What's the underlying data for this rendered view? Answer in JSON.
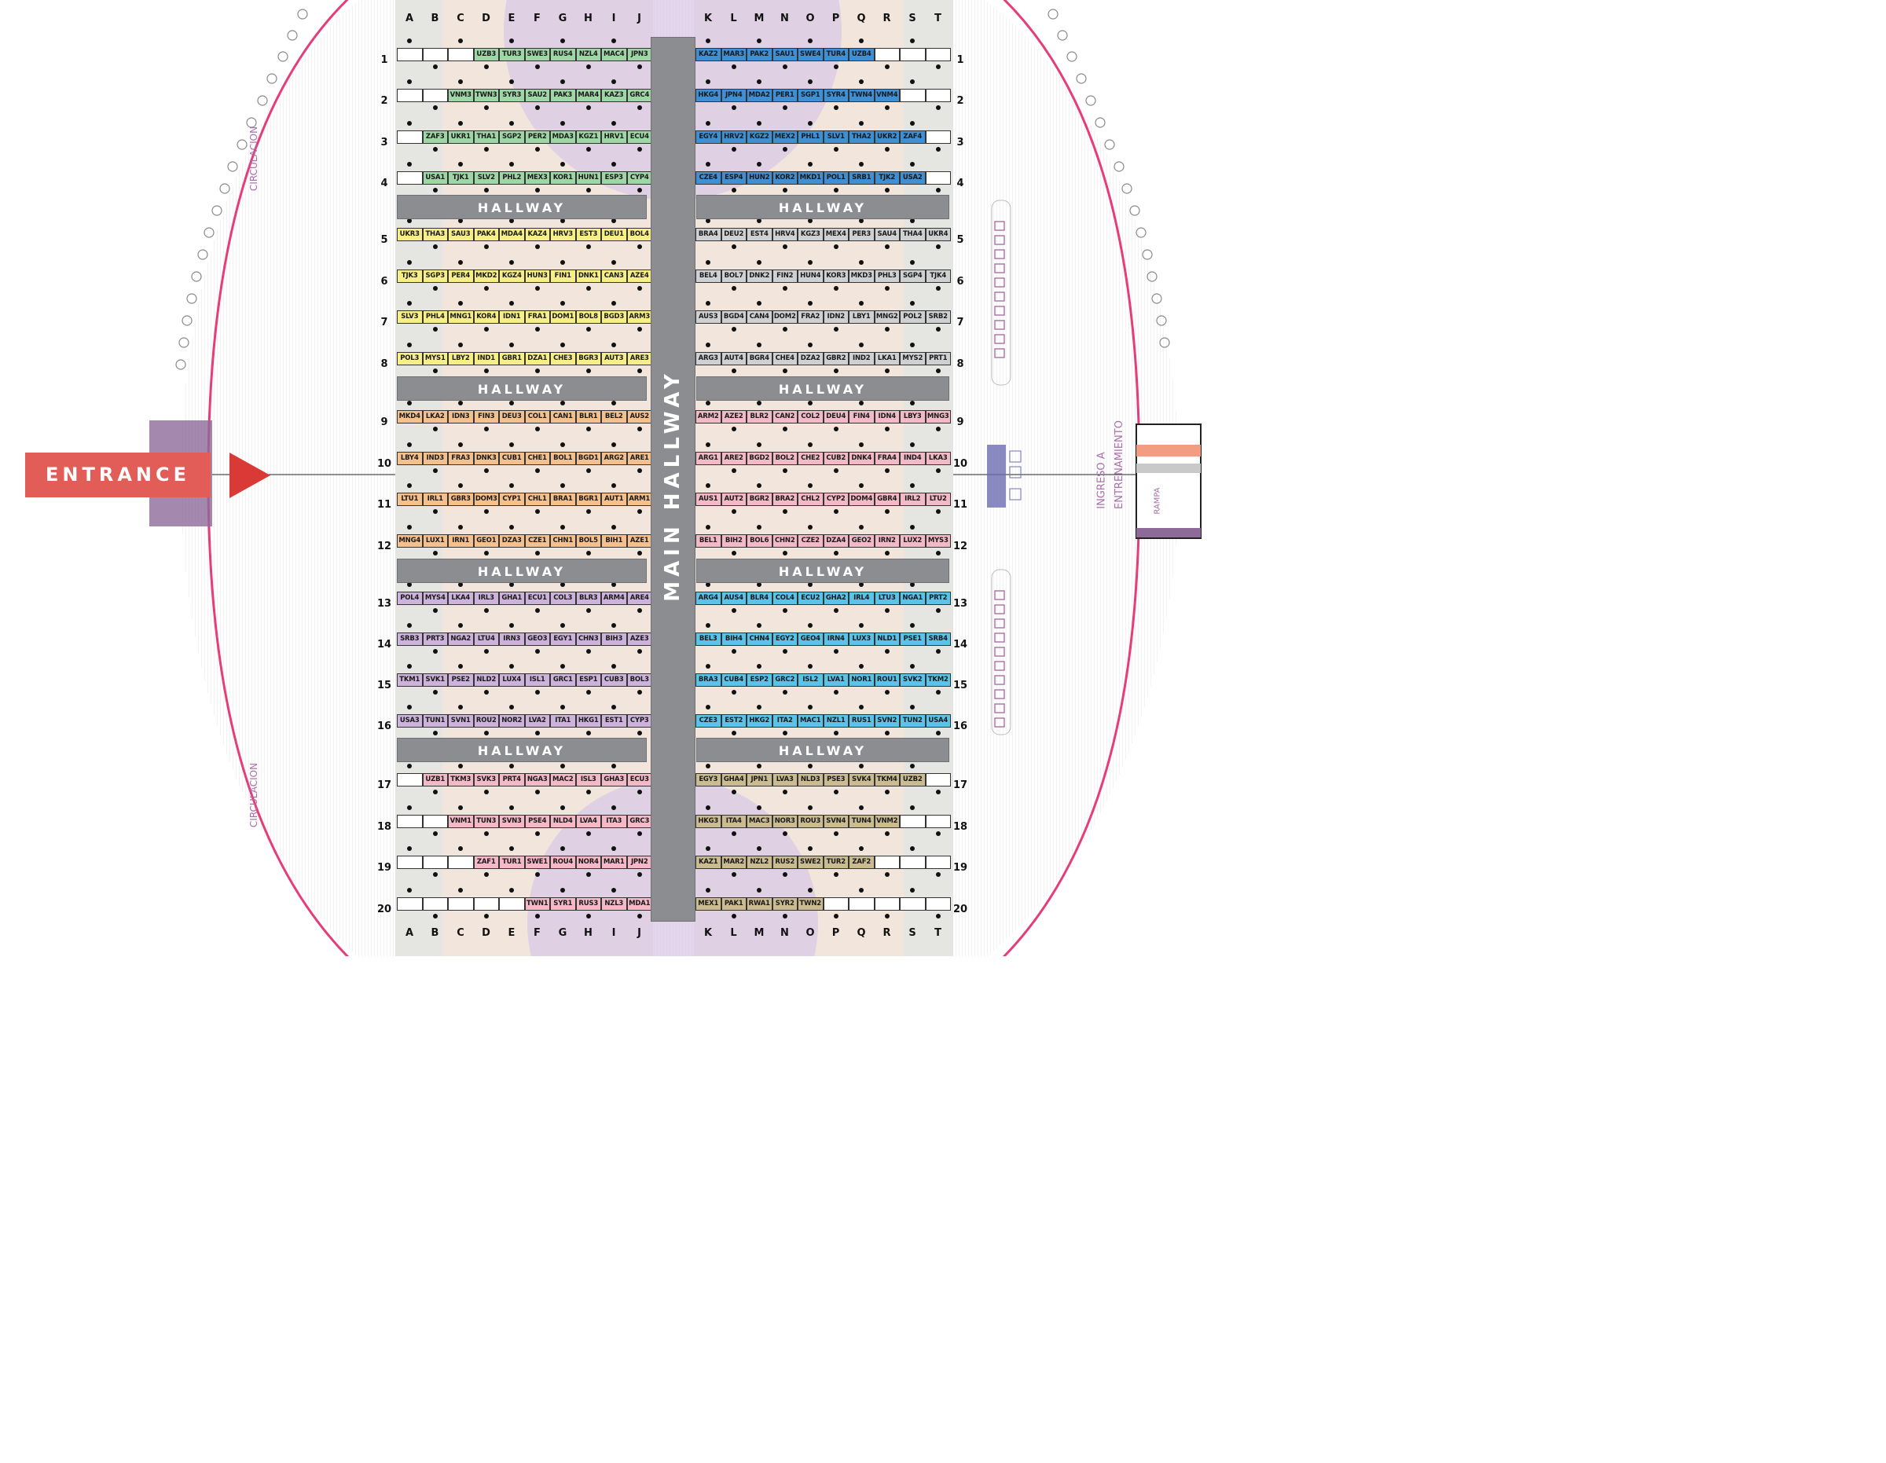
{
  "columns_left": [
    "A",
    "B",
    "C",
    "D",
    "E",
    "F",
    "G",
    "H",
    "I",
    "J"
  ],
  "columns_right": [
    "K",
    "L",
    "M",
    "N",
    "O",
    "P",
    "Q",
    "R",
    "S",
    "T"
  ],
  "hallway_label": "HALLWAY",
  "main_hallway_label": "MAIN HALLWAY",
  "entrance_label": "ENTRANCE",
  "side_labels": {
    "circulation_top": "CIRCULACION",
    "circulation_bottom": "CIRCULACION",
    "ingreso_line1": "INGRESO A",
    "ingreso_line2": "ENTRENAMIENTO",
    "rampa": "RAMPA"
  },
  "colors": {
    "green": "#9fd6a6",
    "blue": "#3f8fd4",
    "yellow": "#f7ef86",
    "gray": "#cfd0d2",
    "orange": "#f6c08d",
    "pink": "#f3b9c7",
    "purple": "#cdb3dc",
    "cyan": "#5cc3e8",
    "tan": "#cbbb91",
    "blank": "#ffffff",
    "hallway": "#8c8d90",
    "entrance": "#e25c58",
    "stadium_outline": "#e53c7a"
  },
  "rows": [
    {
      "n": "1",
      "lc": "green",
      "rc": "blue",
      "left": [
        "",
        "",
        "",
        "UZB3",
        "TUR3",
        "SWE3",
        "RUS4",
        "NZL4",
        "MAC4",
        "JPN3"
      ],
      "right": [
        "KAZ2",
        "MAR3",
        "PAK2",
        "SAU1",
        "SWE4",
        "TUR4",
        "UZB4",
        "",
        "",
        ""
      ]
    },
    {
      "n": "2",
      "lc": "green",
      "rc": "blue",
      "left": [
        "",
        "",
        "VNM3",
        "TWN3",
        "SYR3",
        "SAU2",
        "PAK3",
        "MAR4",
        "KAZ3",
        "GRC4"
      ],
      "right": [
        "HKG4",
        "JPN4",
        "MDA2",
        "PER1",
        "SGP1",
        "SYR4",
        "TWN4",
        "VNM4",
        "",
        ""
      ]
    },
    {
      "n": "3",
      "lc": "green",
      "rc": "blue",
      "left": [
        "",
        "ZAF3",
        "UKR1",
        "THA1",
        "SGP2",
        "PER2",
        "MDA3",
        "KGZ1",
        "HRV1",
        "ECU4"
      ],
      "right": [
        "EGY4",
        "HRV2",
        "KGZ2",
        "MEX2",
        "PHL1",
        "SLV1",
        "THA2",
        "UKR2",
        "ZAF4",
        ""
      ]
    },
    {
      "n": "4",
      "lc": "green",
      "rc": "blue",
      "left": [
        "",
        "USA1",
        "TJK1",
        "SLV2",
        "PHL2",
        "MEX3",
        "KOR1",
        "HUN1",
        "ESP3",
        "CYP4"
      ],
      "right": [
        "CZE4",
        "ESP4",
        "HUN2",
        "KOR2",
        "MKD1",
        "POL1",
        "SRB1",
        "TJK2",
        "USA2",
        ""
      ]
    },
    {
      "n": "5",
      "lc": "yellow",
      "rc": "gray",
      "left": [
        "UKR3",
        "THA3",
        "SAU3",
        "PAK4",
        "MDA4",
        "KAZ4",
        "HRV3",
        "EST3",
        "DEU1",
        "BOL4"
      ],
      "right": [
        "BRA4",
        "DEU2",
        "EST4",
        "HRV4",
        "KGZ3",
        "MEX4",
        "PER3",
        "SAU4",
        "THA4",
        "UKR4"
      ]
    },
    {
      "n": "6",
      "lc": "yellow",
      "rc": "gray",
      "left": [
        "TJK3",
        "SGP3",
        "PER4",
        "MKD2",
        "KGZ4",
        "HUN3",
        "FIN1",
        "DNK1",
        "CAN3",
        "AZE4"
      ],
      "right": [
        "BEL4",
        "BOL7",
        "DNK2",
        "FIN2",
        "HUN4",
        "KOR3",
        "MKD3",
        "PHL3",
        "SGP4",
        "TJK4"
      ]
    },
    {
      "n": "7",
      "lc": "yellow",
      "rc": "gray",
      "left": [
        "SLV3",
        "PHL4",
        "MNG1",
        "KOR4",
        "IDN1",
        "FRA1",
        "DOM1",
        "BOL8",
        "BGD3",
        "ARM3"
      ],
      "right": [
        "AUS3",
        "BGD4",
        "CAN4",
        "DOM2",
        "FRA2",
        "IDN2",
        "LBY1",
        "MNG2",
        "POL2",
        "SRB2"
      ]
    },
    {
      "n": "8",
      "lc": "yellow",
      "rc": "gray",
      "left": [
        "POL3",
        "MYS1",
        "LBY2",
        "IND1",
        "GBR1",
        "DZA1",
        "CHE3",
        "BGR3",
        "AUT3",
        "ARE3"
      ],
      "right": [
        "ARG3",
        "AUT4",
        "BGR4",
        "CHE4",
        "DZA2",
        "GBR2",
        "IND2",
        "LKA1",
        "MYS2",
        "PRT1"
      ]
    },
    {
      "n": "9",
      "lc": "orange",
      "rc": "pink",
      "left": [
        "MKD4",
        "LKA2",
        "IDN3",
        "FIN3",
        "DEU3",
        "COL1",
        "CAN1",
        "BLR1",
        "BEL2",
        "AUS2"
      ],
      "right": [
        "ARM2",
        "AZE2",
        "BLR2",
        "CAN2",
        "COL2",
        "DEU4",
        "FIN4",
        "IDN4",
        "LBY3",
        "MNG3"
      ]
    },
    {
      "n": "10",
      "lc": "orange",
      "rc": "pink",
      "left": [
        "LBY4",
        "IND3",
        "FRA3",
        "DNK3",
        "CUB1",
        "CHE1",
        "BOL1",
        "BGD1",
        "ARG2",
        "ARE1"
      ],
      "right": [
        "ARG1",
        "ARE2",
        "BGD2",
        "BOL2",
        "CHE2",
        "CUB2",
        "DNK4",
        "FRA4",
        "IND4",
        "LKA3"
      ]
    },
    {
      "n": "11",
      "lc": "orange",
      "rc": "pink",
      "left": [
        "LTU1",
        "IRL1",
        "GBR3",
        "DOM3",
        "CYP1",
        "CHL1",
        "BRA1",
        "BGR1",
        "AUT1",
        "ARM1"
      ],
      "right": [
        "AUS1",
        "AUT2",
        "BGR2",
        "BRA2",
        "CHL2",
        "CYP2",
        "DOM4",
        "GBR4",
        "IRL2",
        "LTU2"
      ]
    },
    {
      "n": "12",
      "lc": "orange",
      "rc": "pink",
      "left": [
        "MNG4",
        "LUX1",
        "IRN1",
        "GEO1",
        "DZA3",
        "CZE1",
        "CHN1",
        "BOL5",
        "BIH1",
        "AZE1"
      ],
      "right": [
        "BEL1",
        "BIH2",
        "BOL6",
        "CHN2",
        "CZE2",
        "DZA4",
        "GEO2",
        "IRN2",
        "LUX2",
        "MYS3"
      ]
    },
    {
      "n": "13",
      "lc": "purple",
      "rc": "cyan",
      "left": [
        "POL4",
        "MYS4",
        "LKA4",
        "IRL3",
        "GHA1",
        "ECU1",
        "COL3",
        "BLR3",
        "ARM4",
        "ARE4"
      ],
      "right": [
        "ARG4",
        "AUS4",
        "BLR4",
        "COL4",
        "ECU2",
        "GHA2",
        "IRL4",
        "LTU3",
        "NGA1",
        "PRT2"
      ]
    },
    {
      "n": "14",
      "lc": "purple",
      "rc": "cyan",
      "left": [
        "SRB3",
        "PRT3",
        "NGA2",
        "LTU4",
        "IRN3",
        "GEO3",
        "EGY1",
        "CHN3",
        "BIH3",
        "AZE3"
      ],
      "right": [
        "BEL3",
        "BIH4",
        "CHN4",
        "EGY2",
        "GEO4",
        "IRN4",
        "LUX3",
        "NLD1",
        "PSE1",
        "SRB4"
      ]
    },
    {
      "n": "15",
      "lc": "purple",
      "rc": "cyan",
      "left": [
        "TKM1",
        "SVK1",
        "PSE2",
        "NLD2",
        "LUX4",
        "ISL1",
        "GRC1",
        "ESP1",
        "CUB3",
        "BOL3"
      ],
      "right": [
        "BRA3",
        "CUB4",
        "ESP2",
        "GRC2",
        "ISL2",
        "LVA1",
        "NOR1",
        "ROU1",
        "SVK2",
        "TKM2"
      ]
    },
    {
      "n": "16",
      "lc": "purple",
      "rc": "cyan",
      "left": [
        "USA3",
        "TUN1",
        "SVN1",
        "ROU2",
        "NOR2",
        "LVA2",
        "ITA1",
        "HKG1",
        "EST1",
        "CYP3"
      ],
      "right": [
        "CZE3",
        "EST2",
        "HKG2",
        "ITA2",
        "MAC1",
        "NZL1",
        "RUS1",
        "SVN2",
        "TUN2",
        "USA4"
      ]
    },
    {
      "n": "17",
      "lc": "pink",
      "rc": "tan",
      "left": [
        "",
        "UZB1",
        "TKM3",
        "SVK3",
        "PRT4",
        "NGA3",
        "MAC2",
        "ISL3",
        "GHA3",
        "ECU3"
      ],
      "right": [
        "EGY3",
        "GHA4",
        "JPN1",
        "LVA3",
        "NLD3",
        "PSE3",
        "SVK4",
        "TKM4",
        "UZB2",
        ""
      ]
    },
    {
      "n": "18",
      "lc": "pink",
      "rc": "tan",
      "left": [
        "",
        "",
        "VNM1",
        "TUN3",
        "SVN3",
        "PSE4",
        "NLD4",
        "LVA4",
        "ITA3",
        "GRC3"
      ],
      "right": [
        "HKG3",
        "ITA4",
        "MAC3",
        "NOR3",
        "ROU3",
        "SVN4",
        "TUN4",
        "VNM2",
        "",
        ""
      ]
    },
    {
      "n": "19",
      "lc": "pink",
      "rc": "tan",
      "left": [
        "",
        "",
        "",
        "ZAF1",
        "TUR1",
        "SWE1",
        "ROU4",
        "NOR4",
        "MAR1",
        "JPN2"
      ],
      "right": [
        "KAZ1",
        "MAR2",
        "NZL2",
        "RUS2",
        "SWE2",
        "TUR2",
        "ZAF2",
        "",
        "",
        ""
      ]
    },
    {
      "n": "20",
      "lc": "pink",
      "rc": "tan",
      "left": [
        "",
        "",
        "",
        "",
        "",
        "TWN1",
        "SYR1",
        "RUS3",
        "NZL3",
        "MDA1"
      ],
      "right": [
        "MEX1",
        "PAK1",
        "RWA1",
        "SYR2",
        "TWN2",
        "",
        "",
        "",
        "",
        ""
      ]
    }
  ]
}
